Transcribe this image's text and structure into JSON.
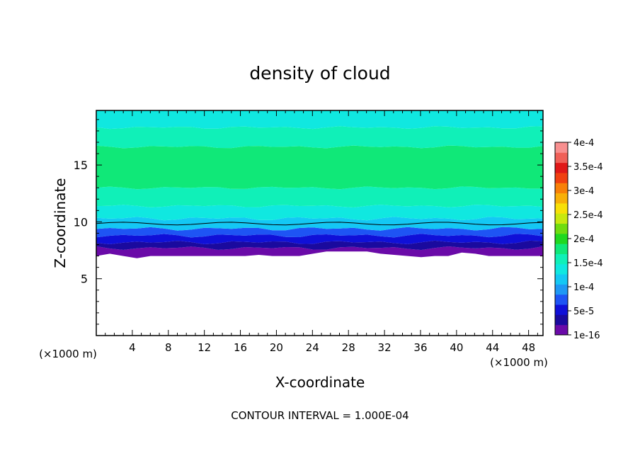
{
  "chart_data": {
    "type": "contour-filled",
    "title": "density of cloud",
    "xlabel": "X-coordinate",
    "ylabel": "Z-coordinate",
    "x_unit_left": "(×1000 m)",
    "x_unit_right": "(×1000 m)",
    "xlim": [
      0,
      49.6
    ],
    "ylim": [
      0,
      19.8
    ],
    "x_ticks": [
      4,
      8,
      12,
      16,
      20,
      24,
      28,
      32,
      36,
      40,
      44,
      48
    ],
    "y_ticks": [
      5,
      10,
      15
    ],
    "contour_interval_text": "CONTOUR INTERVAL = 1.000E-04",
    "field": {
      "base_z": [
        7.0,
        7.2,
        7.0,
        6.8,
        7.0,
        7.0,
        7.0,
        7.0,
        7.0,
        7.0,
        7.0,
        7.0,
        7.1,
        7.0,
        7.0,
        7.0,
        7.2,
        7.4,
        7.4,
        7.4,
        7.4,
        7.2,
        7.1,
        7.0,
        6.9,
        7.0,
        7.0,
        7.3,
        7.2,
        7.0,
        7.0,
        7.0,
        7.0,
        7.0
      ],
      "bands": [
        {
          "z": [
            7.0,
            7.7
          ],
          "level": "1e-16"
        },
        {
          "z": [
            7.7,
            8.2
          ],
          "level": "2.5e-5"
        },
        {
          "z": [
            8.2,
            8.8
          ],
          "level": "5e-5"
        },
        {
          "z": [
            8.8,
            9.4
          ],
          "level": "7.5e-5"
        },
        {
          "z": [
            9.4,
            10.3
          ],
          "level": "1e-4"
        },
        {
          "z": [
            10.3,
            11.4
          ],
          "level": "1.25e-4"
        },
        {
          "z": [
            11.4,
            13.0
          ],
          "level": "1.5e-4"
        },
        {
          "z": [
            13.0,
            16.6
          ],
          "level": "1.75e-4"
        },
        {
          "z": [
            16.6,
            18.3
          ],
          "level": "1.5e-4"
        },
        {
          "z": [
            18.3,
            19.8
          ],
          "level": "1.25e-4"
        }
      ],
      "contour_line_z": 9.85
    },
    "colorbar": {
      "labels": [
        "1e-16",
        "5e-5",
        "1e-4",
        "1.5e-4",
        "2e-4",
        "2.5e-4",
        "3e-4",
        "3.5e-4",
        "4e-4"
      ],
      "colors": [
        "#6a0aa8",
        "#1a0a9e",
        "#1010d8",
        "#1e54f4",
        "#1e98f4",
        "#14c8f4",
        "#10e8e0",
        "#10f0b8",
        "#10e878",
        "#20d820",
        "#70dc10",
        "#c8e810",
        "#f8e008",
        "#f8b008",
        "#f88008",
        "#f04010",
        "#e01818",
        "#f06058",
        "#f89090"
      ]
    }
  }
}
